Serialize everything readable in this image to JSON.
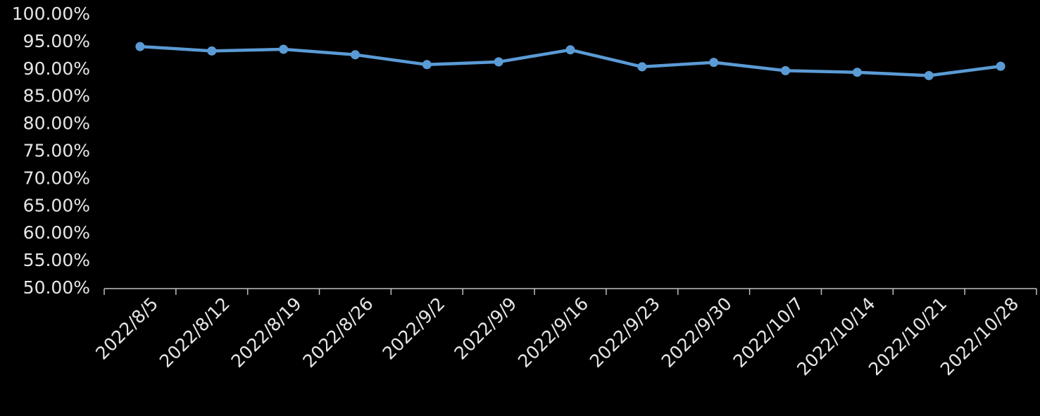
{
  "chart_data": {
    "type": "line",
    "categories": [
      "2022/8/5",
      "2022/8/12",
      "2022/8/19",
      "2022/8/26",
      "2022/9/2",
      "2022/9/9",
      "2022/9/16",
      "2022/9/23",
      "2022/9/30",
      "2022/10/7",
      "2022/10/14",
      "2022/10/21",
      "2022/10/28"
    ],
    "series": [
      {
        "color": "#5b9bd5",
        "values": [
          94.2,
          93.4,
          93.7,
          92.7,
          90.9,
          91.4,
          93.6,
          90.5,
          91.3,
          89.8,
          89.5,
          88.9,
          90.6
        ]
      }
    ],
    "ylim": [
      50,
      100
    ],
    "yticks": [
      {
        "value": 50,
        "label": "50.00%"
      },
      {
        "value": 55,
        "label": "55.00%"
      },
      {
        "value": 60,
        "label": "60.00%"
      },
      {
        "value": 65,
        "label": "65.00%"
      },
      {
        "value": 70,
        "label": "70.00%"
      },
      {
        "value": 75,
        "label": "75.00%"
      },
      {
        "value": 80,
        "label": "80.00%"
      },
      {
        "value": 85,
        "label": "85.00%"
      },
      {
        "value": 90,
        "label": "90.00%"
      },
      {
        "value": 95,
        "label": "95.00%"
      },
      {
        "value": 100,
        "label": "100.00%"
      }
    ],
    "grid": false
  }
}
